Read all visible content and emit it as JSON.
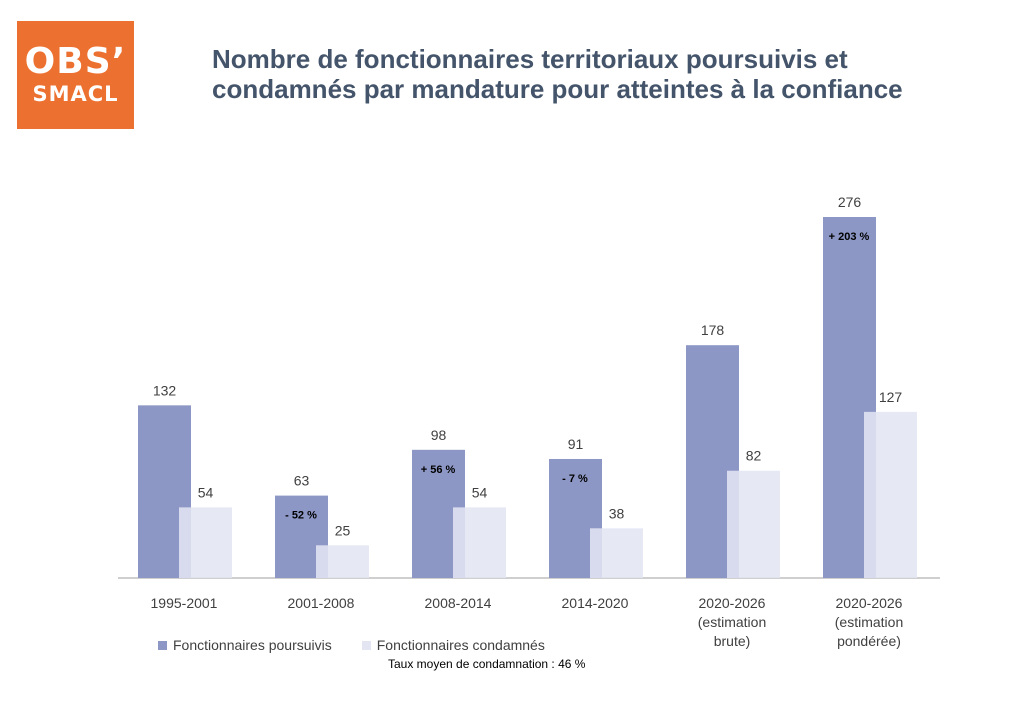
{
  "logo": {
    "line1": "OBS’",
    "line2": "SMACL"
  },
  "title": {
    "line1": "Nombre de fonctionnaires territoriaux poursuivis et",
    "line2": "condamnés par mandature pour atteintes à la confiance"
  },
  "colors": {
    "poursuivis": "#8d97c5",
    "condamnes": "#e3e5f2",
    "axis": "#bfbfbf",
    "logo": "#ec7130"
  },
  "chart_data": {
    "type": "bar",
    "categories": [
      [
        "1995-2001"
      ],
      [
        "2001-2008"
      ],
      [
        "2008-2014"
      ],
      [
        "2014-2020"
      ],
      [
        "2020-2026",
        "(estimation",
        "brute)"
      ],
      [
        "2020-2026",
        "(estimation",
        "pondérée)"
      ]
    ],
    "series": [
      {
        "name": "Fonctionnaires poursuivis",
        "values": [
          132,
          63,
          98,
          91,
          178,
          276
        ]
      },
      {
        "name": "Fonctionnaires condamnés",
        "values": [
          54,
          25,
          54,
          38,
          82,
          127
        ]
      }
    ],
    "annotations": [
      "",
      "- 52 %",
      "+ 56 %",
      "- 7 %",
      "",
      "+ 203 %"
    ],
    "ylim": [
      0,
      276
    ],
    "grid": false,
    "legend_position": "bottom-left"
  },
  "legend": {
    "poursuivis": "Fonctionnaires poursuivis",
    "condamnes": "Fonctionnaires condamnés"
  },
  "note": "Taux moyen de condamnation : 46 %"
}
